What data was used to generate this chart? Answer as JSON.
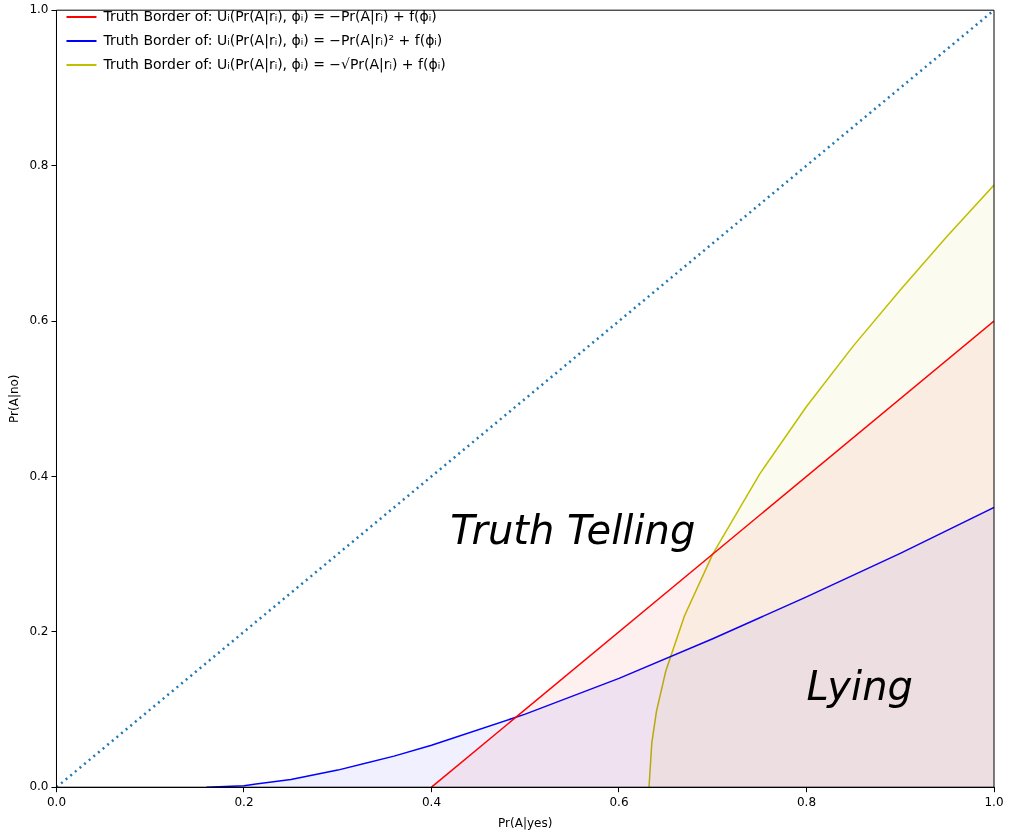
{
  "chart_data": {
    "type": "line",
    "xlabel": "Pr(A|yes)",
    "ylabel": "Pr(A|no)",
    "xlim": [
      0,
      1
    ],
    "ylim": [
      0,
      1
    ],
    "xticks": [
      {
        "value": 0,
        "label": "0.0"
      },
      0.2,
      0.4,
      0.6,
      0.8,
      {
        "value": 1,
        "label": "1.0"
      }
    ],
    "yticks": [
      {
        "value": 0,
        "label": "0.0"
      },
      0.2,
      0.4,
      0.6,
      0.8,
      {
        "value": 1,
        "label": "1.0"
      }
    ],
    "grid": false,
    "legend": "top left",
    "marker": "none",
    "series": [
      {
        "type": "area",
        "name": "Truth Border of: Uᵢ(Pr(A|rᵢ), ϕᵢ) = −Pr(A|rᵢ) + f(ϕᵢ)",
        "color": "#ff0000",
        "x": [
          0.4,
          1.0
        ],
        "values": [
          0,
          0.6
        ]
      },
      {
        "type": "area",
        "name": "Truth Border of: Uᵢ(Pr(A|rᵢ), ϕᵢ) = −Pr(A|rᵢ)² + f(ϕᵢ)",
        "color": "#0000ff",
        "x": [
          0.16,
          0.2,
          0.25,
          0.3,
          0.36,
          0.4,
          0.5,
          0.6,
          0.7,
          0.8,
          0.9,
          1.0
        ],
        "values": [
          0,
          0.002,
          0.01,
          0.022,
          0.04,
          0.054,
          0.094,
          0.14,
          0.191,
          0.245,
          0.301,
          0.36
        ]
      },
      {
        "type": "area",
        "name": "Truth Border of: Uᵢ(Pr(A|rᵢ), ϕᵢ) = −√Pr(A|rᵢ) + f(ϕᵢ)",
        "color": "#bfbf00",
        "x": [
          0.632,
          0.635,
          0.64,
          0.65,
          0.67,
          0.7,
          0.75,
          0.8,
          0.85,
          0.9,
          0.95,
          1.0
        ],
        "values": [
          0,
          0.057,
          0.098,
          0.15,
          0.221,
          0.3,
          0.403,
          0.49,
          0.568,
          0.64,
          0.709,
          0.775
        ]
      },
      {
        "type": "line",
        "color": "#1f77b4",
        "line_style": "dotted",
        "x": [
          0,
          1
        ],
        "values": [
          0,
          1
        ]
      }
    ],
    "annotations": [
      "Truth Telling",
      "Lying"
    ]
  }
}
